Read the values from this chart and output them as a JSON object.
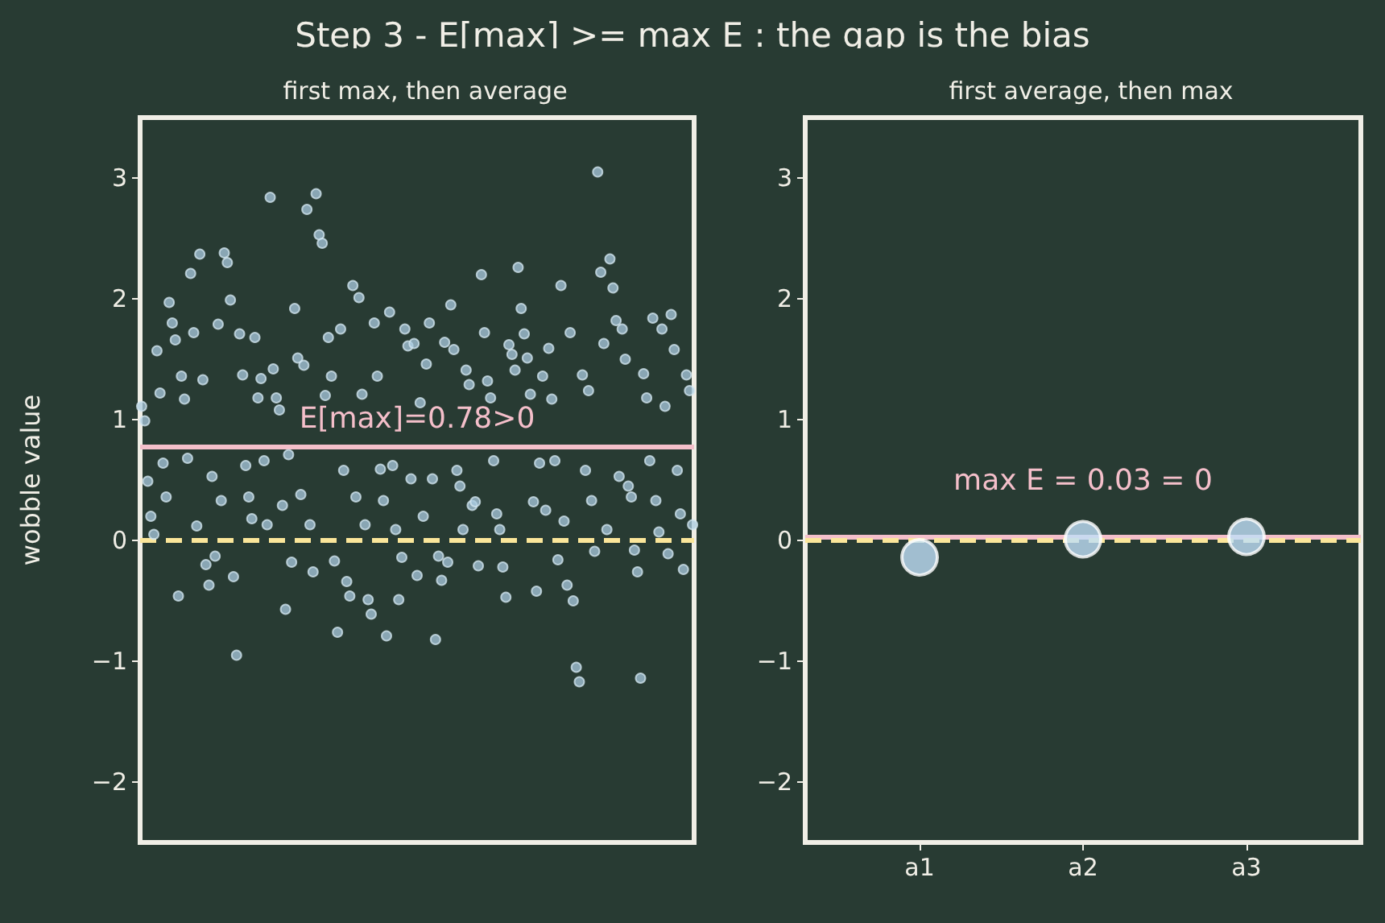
{
  "chart_data": [
    {
      "type": "scatter",
      "title": "Step 3 - E[max] >= max E : the gap is the bias",
      "subtitle": "first max, then average",
      "ylabel": "wobble value",
      "color": "#a9cbe0",
      "marker": "circle",
      "tick_labels": "y",
      "categories": [
        null,
        null,
        null,
        null,
        null,
        null,
        null,
        null,
        null,
        null,
        null,
        null,
        null,
        null,
        null,
        null,
        null,
        null,
        null,
        null,
        null,
        null,
        null,
        null,
        null,
        null,
        null,
        null,
        null,
        null,
        null,
        null,
        null,
        null,
        null,
        null,
        null,
        null,
        null,
        null,
        null,
        null,
        null,
        null,
        null,
        null,
        null,
        null,
        null,
        null,
        null,
        null,
        null,
        null,
        null,
        null,
        null,
        null,
        null,
        null,
        null,
        null,
        null,
        null,
        null,
        null,
        null,
        null,
        null,
        null,
        null,
        null,
        null,
        null,
        null,
        null,
        null,
        null,
        null,
        null,
        null,
        null,
        null,
        null,
        null,
        null,
        null,
        null,
        null,
        null,
        null,
        null,
        null,
        null,
        null,
        null,
        null,
        null,
        null,
        null,
        null,
        null,
        null,
        null,
        null,
        null,
        null,
        null,
        null,
        null,
        null,
        null,
        null,
        null,
        null,
        null,
        null,
        null,
        null,
        null,
        null,
        null,
        null,
        null,
        null,
        null,
        null,
        null,
        null,
        null,
        null,
        null,
        null,
        null,
        null,
        null,
        null,
        null,
        null,
        null,
        null,
        null,
        null,
        null,
        null,
        null,
        null,
        null,
        null,
        null,
        null,
        null,
        null,
        null,
        null,
        null,
        null,
        null,
        null,
        null,
        null,
        null,
        null,
        null,
        null,
        null,
        null,
        null,
        null,
        null,
        null,
        null,
        null,
        null,
        null,
        null,
        null,
        null,
        null,
        null,
        null
      ],
      "ylim": [
        -2.5,
        3.5
      ],
      "yticks": [
        -2,
        -1,
        0,
        1,
        2,
        3
      ],
      "values": [
        1.11,
        0.99,
        0.49,
        0.2,
        0.05,
        1.57,
        1.22,
        0.64,
        0.36,
        1.97,
        1.8,
        1.66,
        -0.46,
        1.36,
        1.17,
        0.68,
        2.21,
        1.72,
        0.12,
        2.37,
        1.33,
        -0.2,
        -0.37,
        0.53,
        -0.13,
        1.79,
        0.33,
        2.38,
        2.3,
        1.99,
        -0.3,
        -0.95,
        1.71,
        1.37,
        0.62,
        0.36,
        0.18,
        1.68,
        1.18,
        1.34,
        0.66,
        0.13,
        2.84,
        1.42,
        1.18,
        1.08,
        0.29,
        -0.57,
        0.71,
        -0.18,
        1.92,
        1.51,
        0.38,
        1.45,
        2.74,
        0.13,
        -0.26,
        2.87,
        2.53,
        2.46,
        1.2,
        1.68,
        1.36,
        -0.17,
        -0.76,
        1.75,
        0.58,
        -0.34,
        -0.46,
        2.11,
        0.36,
        2.01,
        1.21,
        0.13,
        -0.49,
        -0.61,
        1.8,
        1.36,
        0.59,
        0.33,
        -0.79,
        1.89,
        0.62,
        0.09,
        -0.49,
        -0.14,
        1.75,
        1.61,
        0.51,
        1.63,
        -0.29,
        1.14,
        0.2,
        1.46,
        1.8,
        0.51,
        -0.82,
        -0.13,
        -0.33,
        1.64,
        -0.18,
        1.95,
        1.58,
        0.58,
        0.45,
        0.09,
        1.41,
        1.29,
        0.29,
        0.32,
        -0.21,
        2.2,
        1.72,
        1.32,
        1.18,
        0.66,
        0.22,
        0.09,
        -0.22,
        -0.47,
        1.62,
        1.54,
        1.41,
        2.26,
        1.92,
        1.71,
        1.51,
        1.21,
        0.32,
        -0.42,
        0.64,
        1.36,
        0.25,
        1.59,
        1.17,
        0.66,
        -0.16,
        2.11,
        0.16,
        -0.37,
        1.72,
        -0.5,
        -1.05,
        -1.17,
        1.37,
        0.58,
        1.24,
        0.33,
        -0.09,
        3.05,
        2.22,
        1.63,
        0.09,
        2.33,
        2.09,
        1.82,
        0.53,
        1.75,
        1.5,
        0.45,
        0.36,
        -0.08,
        -0.26,
        -1.14,
        1.38,
        1.18,
        0.66,
        1.84,
        0.33,
        0.07,
        1.75,
        1.11,
        -0.11,
        1.87,
        1.58,
        0.58,
        0.22,
        -0.24,
        1.37,
        1.24,
        0.13
      ],
      "ref_lines": [
        {
          "axis": "y",
          "value": 0.78,
          "color": "#f4bfca",
          "line_style": "solid"
        },
        {
          "axis": "y",
          "value": 0,
          "color": "#fbe69a",
          "line_style": "dashed"
        }
      ],
      "annotations": [
        "E[max]=0.78>0"
      ]
    },
    {
      "type": "scatter",
      "subtitle": "first average, then max",
      "categories": [
        "a1",
        "a2",
        "a3"
      ],
      "values": [
        -0.14,
        0.01,
        0.03
      ],
      "color": "#bfe0f8",
      "marker": "circle",
      "ylim": [
        -2.5,
        3.5
      ],
      "yticks": [
        -2,
        -1,
        0,
        1,
        2,
        3
      ],
      "ref_lines": [
        {
          "axis": "y",
          "value": 0.03,
          "color": "#f4bfca",
          "line_style": "solid"
        },
        {
          "axis": "y",
          "value": 0,
          "color": "#fbe69a",
          "line_style": "dashed"
        }
      ],
      "annotations": [
        "max E = 0.03 = 0"
      ]
    }
  ]
}
